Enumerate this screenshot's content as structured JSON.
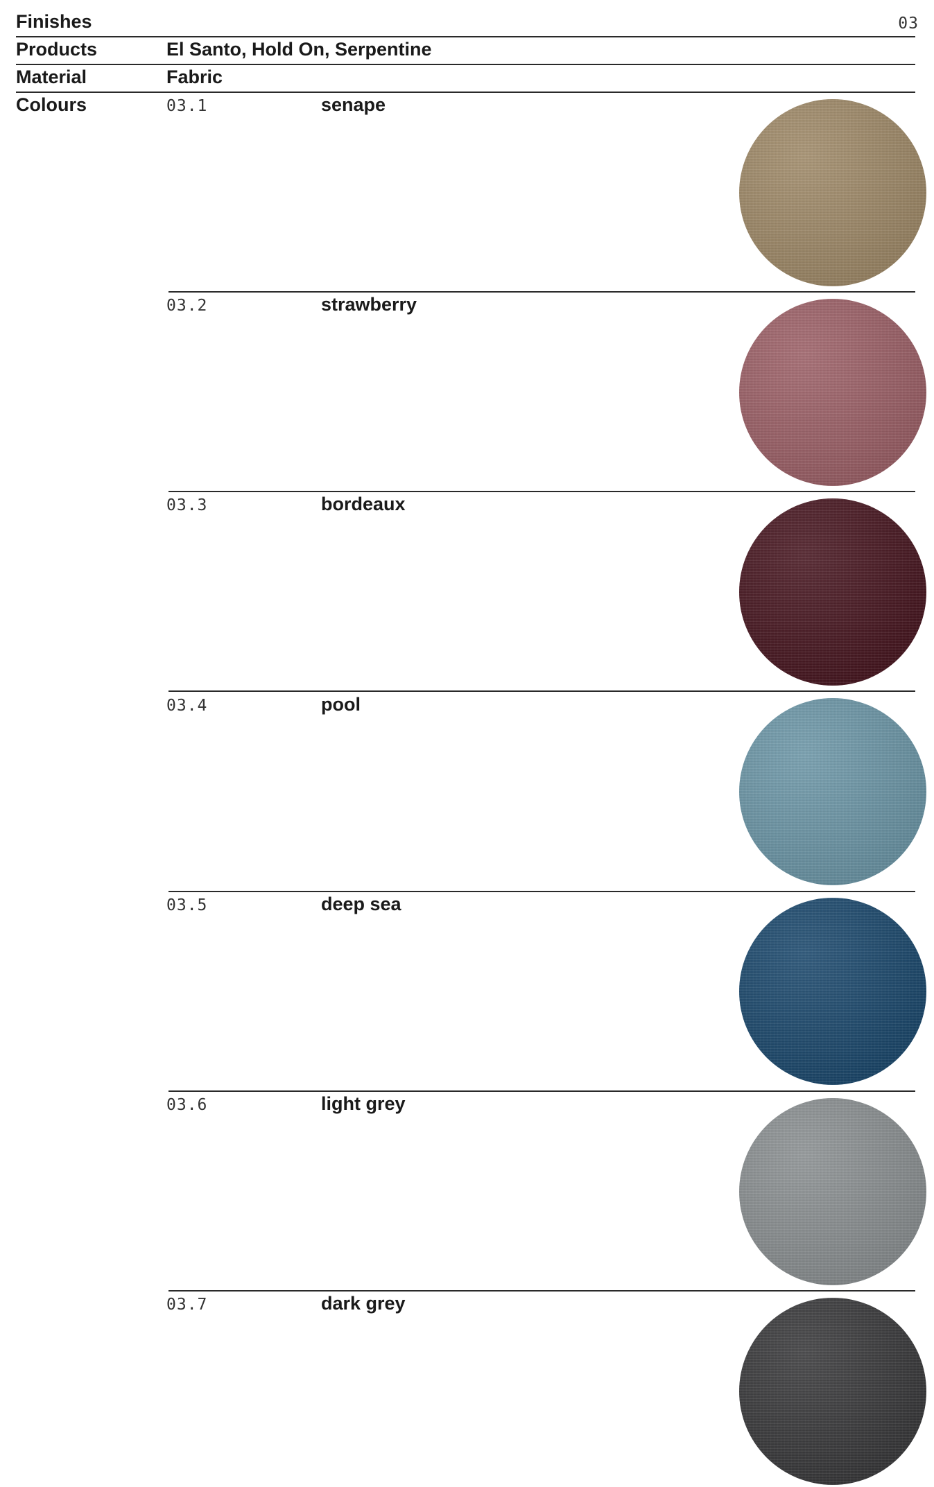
{
  "header": {
    "section_title": "Finishes",
    "section_number": "03"
  },
  "products": {
    "label": "Products",
    "value": "El Santo, Hold On, Serpentine"
  },
  "material": {
    "label": "Material",
    "value": "Fabric"
  },
  "colours": {
    "label": "Colours",
    "items": [
      {
        "code": "03.1",
        "name": "senape",
        "color": "#a38d6b",
        "swatch": "fabric-swatch"
      },
      {
        "code": "03.2",
        "name": "strawberry",
        "color": "#a0636a",
        "swatch": "fabric-swatch"
      },
      {
        "code": "03.3",
        "name": "bordeaux",
        "color": "#4a1822",
        "swatch": "fabric-swatch"
      },
      {
        "code": "03.4",
        "name": "pool",
        "color": "#6f9aab",
        "swatch": "fabric-swatch"
      },
      {
        "code": "03.5",
        "name": "deep sea",
        "color": "#1d4b70",
        "swatch": "fabric-swatch"
      },
      {
        "code": "03.6",
        "name": "light grey",
        "color": "#8e9395",
        "swatch": "fabric-swatch"
      },
      {
        "code": "03.7",
        "name": "dark grey",
        "color": "#3b3b3d",
        "swatch": "fabric-swatch"
      }
    ]
  }
}
